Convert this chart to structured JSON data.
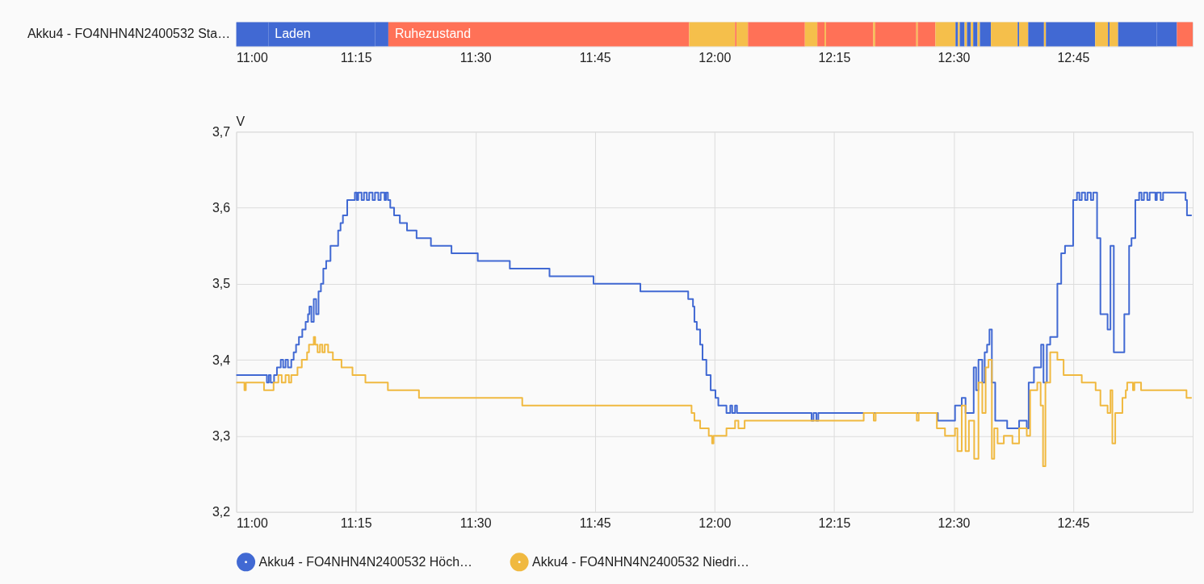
{
  "chart_data": [
    {
      "type": "bar",
      "orientation": "horizontal",
      "categories": [
        "Akku4 - FO4NHN4N2400532 Sta…"
      ],
      "xlim": [
        11,
        13
      ],
      "xticks": [
        {
          "value": 11,
          "label": "11:00"
        },
        {
          "value": 11.25,
          "label": "11:15"
        },
        {
          "value": 11.5,
          "label": "11:30"
        },
        {
          "value": 11.75,
          "label": "11:45"
        },
        {
          "value": 12,
          "label": "12:00"
        },
        {
          "value": 12.25,
          "label": "12:15"
        },
        {
          "value": 12.5,
          "label": "12:30"
        },
        {
          "value": 12.75,
          "label": "12:45"
        }
      ],
      "grid": false,
      "series": [
        {
          "color": "#4169d3",
          "values": [
            0.067
          ],
          "base": [
            11.0
          ]
        },
        {
          "color": "#4169d3",
          "values": [
            0.223
          ],
          "base": [
            11.067
          ],
          "value_labels": [
            "Laden"
          ]
        },
        {
          "color": "#4169d3",
          "values": [
            0.028
          ],
          "base": [
            11.29
          ]
        },
        {
          "color": "#ff7157",
          "values": [
            0.629
          ],
          "base": [
            11.318
          ],
          "value_labels": [
            "Ruhezustand"
          ]
        },
        {
          "color": "#f5bf4b",
          "values": [
            0.096
          ],
          "base": [
            11.947
          ]
        },
        {
          "color": "#ff7157",
          "values": [
            0.003
          ],
          "base": [
            12.043
          ]
        },
        {
          "color": "#f5bf4b",
          "values": [
            0.024
          ],
          "base": [
            12.046
          ]
        },
        {
          "color": "#ff7157",
          "values": [
            0.119
          ],
          "base": [
            12.07
          ]
        },
        {
          "color": "#f5bf4b",
          "values": [
            0.026
          ],
          "base": [
            12.189
          ]
        },
        {
          "color": "#ff7157",
          "values": [
            0.015
          ],
          "base": [
            12.215
          ]
        },
        {
          "color": "#f5bf4b",
          "values": [
            0.003
          ],
          "base": [
            12.23
          ]
        },
        {
          "color": "#ff7157",
          "values": [
            0.099
          ],
          "base": [
            12.233
          ]
        },
        {
          "color": "#f5bf4b",
          "values": [
            0.004
          ],
          "base": [
            12.332
          ]
        },
        {
          "color": "#ff7157",
          "values": [
            0.086
          ],
          "base": [
            12.336
          ]
        },
        {
          "color": "#f5bf4b",
          "values": [
            0.003
          ],
          "base": [
            12.422
          ]
        },
        {
          "color": "#ff7157",
          "values": [
            0.037
          ],
          "base": [
            12.425
          ]
        },
        {
          "color": "#f5bf4b",
          "values": [
            0.042
          ],
          "base": [
            12.462
          ]
        },
        {
          "color": "#4169d3",
          "values": [
            0.005
          ],
          "base": [
            12.504
          ]
        },
        {
          "color": "#f5bf4b",
          "values": [
            0.004
          ],
          "base": [
            12.509
          ]
        },
        {
          "color": "#4169d3",
          "values": [
            0.01
          ],
          "base": [
            12.513
          ]
        },
        {
          "color": "#f5bf4b",
          "values": [
            0.005
          ],
          "base": [
            12.523
          ]
        },
        {
          "color": "#4169d3",
          "values": [
            0.008
          ],
          "base": [
            12.528
          ]
        },
        {
          "color": "#f5bf4b",
          "values": [
            0.005
          ],
          "base": [
            12.536
          ]
        },
        {
          "color": "#4169d3",
          "values": [
            0.009
          ],
          "base": [
            12.541
          ]
        },
        {
          "color": "#f5bf4b",
          "values": [
            0.005
          ],
          "base": [
            12.55
          ]
        },
        {
          "color": "#4169d3",
          "values": [
            0.023
          ],
          "base": [
            12.555
          ]
        },
        {
          "color": "#f5bf4b",
          "values": [
            0.056
          ],
          "base": [
            12.578
          ]
        },
        {
          "color": "#4169d3",
          "values": [
            0.003
          ],
          "base": [
            12.634
          ]
        },
        {
          "color": "#f5bf4b",
          "values": [
            0.019
          ],
          "base": [
            12.637
          ]
        },
        {
          "color": "#4169d3",
          "values": [
            0.033
          ],
          "base": [
            12.656
          ]
        },
        {
          "color": "#f5bf4b",
          "values": [
            0.004
          ],
          "base": [
            12.689
          ]
        },
        {
          "color": "#4169d3",
          "values": [
            0.103
          ],
          "base": [
            12.693
          ]
        },
        {
          "color": "#f5bf4b",
          "values": [
            0.027
          ],
          "base": [
            12.796
          ]
        },
        {
          "color": "#4169d3",
          "values": [
            0.003
          ],
          "base": [
            12.823
          ]
        },
        {
          "color": "#f5bf4b",
          "values": [
            0.018
          ],
          "base": [
            12.826
          ]
        },
        {
          "color": "#4169d3",
          "values": [
            0.081
          ],
          "base": [
            12.844
          ]
        },
        {
          "color": "#4169d3",
          "values": [
            0.042
          ],
          "base": [
            12.925
          ]
        },
        {
          "color": "#ff7157",
          "values": [
            0.033
          ],
          "base": [
            12.967
          ]
        }
      ]
    },
    {
      "type": "step",
      "ylabel": "V",
      "xlim": [
        11,
        13
      ],
      "xticks": [
        {
          "value": 11,
          "label": "11:00"
        },
        {
          "value": 11.25,
          "label": "11:15"
        },
        {
          "value": 11.5,
          "label": "11:30"
        },
        {
          "value": 11.75,
          "label": "11:45"
        },
        {
          "value": 12,
          "label": "12:00"
        },
        {
          "value": 12.25,
          "label": "12:15"
        },
        {
          "value": 12.5,
          "label": "12:30"
        },
        {
          "value": 12.75,
          "label": "12:45"
        }
      ],
      "ylim": [
        3.2,
        3.7
      ],
      "yticks": [
        {
          "value": 3.2,
          "label": "3,2"
        },
        {
          "value": 3.3,
          "label": "3,3"
        },
        {
          "value": 3.4,
          "label": "3,4"
        },
        {
          "value": 3.5,
          "label": "3,5"
        },
        {
          "value": 3.6,
          "label": "3,6"
        },
        {
          "value": 3.7,
          "label": "3,7"
        }
      ],
      "grid": true,
      "legend": "bottom",
      "marker": "none",
      "series": [
        {
          "name": "Akku4 - FO4NHN4N2400532 Höch…",
          "color": "#4169d3",
          "x": [
            11.0,
            11.064,
            11.068,
            11.072,
            11.079,
            11.085,
            11.093,
            11.098,
            11.103,
            11.108,
            11.115,
            11.12,
            11.125,
            11.131,
            11.138,
            11.145,
            11.15,
            11.153,
            11.157,
            11.162,
            11.167,
            11.172,
            11.177,
            11.182,
            11.188,
            11.197,
            11.213,
            11.218,
            11.223,
            11.232,
            11.248,
            11.252,
            11.255,
            11.262,
            11.267,
            11.273,
            11.278,
            11.285,
            11.29,
            11.297,
            11.302,
            11.31,
            11.313,
            11.317,
            11.322,
            11.33,
            11.342,
            11.357,
            11.377,
            11.407,
            11.45,
            11.505,
            11.572,
            11.655,
            11.747,
            11.845,
            11.945,
            11.955,
            11.958,
            11.963,
            11.97,
            11.975,
            11.983,
            11.992,
            12.002,
            12.008,
            12.025,
            12.033,
            12.037,
            12.043,
            12.047,
            12.203,
            12.207,
            12.213,
            12.217,
            12.467,
            12.503,
            12.517,
            12.525,
            12.542,
            12.547,
            12.552,
            12.56,
            12.565,
            12.57,
            12.575,
            12.58,
            12.587,
            12.612,
            12.637,
            12.653,
            12.657,
            12.668,
            12.683,
            12.688,
            12.695,
            12.702,
            12.717,
            12.725,
            12.733,
            12.75,
            12.758,
            12.763,
            12.768,
            12.775,
            12.78,
            12.787,
            12.792,
            12.8,
            12.807,
            12.822,
            12.828,
            12.835,
            12.845,
            12.857,
            12.867,
            12.872,
            12.88,
            12.888,
            12.893,
            12.898,
            12.905,
            12.91,
            12.922,
            12.925,
            12.933,
            12.938,
            12.968,
            12.985,
            12.988,
            12.998
          ],
          "values": [
            3.38,
            3.37,
            3.38,
            3.37,
            3.38,
            3.39,
            3.4,
            3.39,
            3.4,
            3.39,
            3.4,
            3.41,
            3.42,
            3.43,
            3.44,
            3.45,
            3.46,
            3.47,
            3.45,
            3.48,
            3.46,
            3.49,
            3.5,
            3.52,
            3.53,
            3.55,
            3.57,
            3.58,
            3.59,
            3.61,
            3.62,
            3.61,
            3.62,
            3.61,
            3.62,
            3.61,
            3.62,
            3.61,
            3.62,
            3.61,
            3.62,
            3.61,
            3.62,
            3.61,
            3.6,
            3.59,
            3.58,
            3.57,
            3.56,
            3.55,
            3.54,
            3.53,
            3.52,
            3.51,
            3.5,
            3.49,
            3.48,
            3.47,
            3.45,
            3.44,
            3.42,
            3.4,
            3.38,
            3.36,
            3.35,
            3.34,
            3.33,
            3.34,
            3.33,
            3.34,
            3.33,
            3.32,
            3.33,
            3.32,
            3.33,
            3.32,
            3.34,
            3.35,
            3.33,
            3.39,
            3.36,
            3.4,
            3.37,
            3.41,
            3.42,
            3.44,
            3.37,
            3.32,
            3.31,
            3.32,
            3.31,
            3.37,
            3.39,
            3.42,
            3.37,
            3.42,
            3.43,
            3.5,
            3.54,
            3.55,
            3.61,
            3.62,
            3.61,
            3.62,
            3.61,
            3.62,
            3.61,
            3.62,
            3.56,
            3.46,
            3.44,
            3.55,
            3.41,
            3.41,
            3.46,
            3.55,
            3.56,
            3.61,
            3.62,
            3.61,
            3.62,
            3.61,
            3.62,
            3.61,
            3.62,
            3.61,
            3.62,
            3.62,
            3.61,
            3.59,
            3.59
          ]
        },
        {
          "name": "Akku4 - FO4NHN4N2400532 Niedri…",
          "color": "#f0b940",
          "x": [
            11.0,
            11.017,
            11.02,
            11.058,
            11.078,
            11.088,
            11.095,
            11.103,
            11.11,
            11.115,
            11.128,
            11.137,
            11.148,
            11.152,
            11.162,
            11.165,
            11.17,
            11.175,
            11.18,
            11.185,
            11.192,
            11.202,
            11.22,
            11.243,
            11.27,
            11.317,
            11.382,
            11.598,
            11.952,
            11.958,
            11.97,
            11.988,
            11.995,
            11.998,
            12.025,
            12.043,
            12.05,
            12.063,
            12.312,
            12.333,
            12.337,
            12.423,
            12.427,
            12.465,
            12.482,
            12.503,
            12.508,
            12.517,
            12.525,
            12.532,
            12.543,
            12.552,
            12.56,
            12.567,
            12.573,
            12.58,
            12.585,
            12.592,
            12.605,
            12.623,
            12.637,
            12.653,
            12.66,
            12.675,
            12.682,
            12.687,
            12.692,
            12.702,
            12.717,
            12.73,
            12.762,
            12.768,
            12.797,
            12.807,
            12.822,
            12.828,
            12.832,
            12.838,
            12.845,
            12.853,
            12.86,
            12.863,
            12.875,
            12.878,
            12.892,
            12.987,
            12.998
          ],
          "values": [
            3.37,
            3.36,
            3.37,
            3.36,
            3.37,
            3.38,
            3.37,
            3.38,
            3.37,
            3.38,
            3.39,
            3.4,
            3.41,
            3.42,
            3.43,
            3.42,
            3.41,
            3.42,
            3.41,
            3.42,
            3.41,
            3.4,
            3.39,
            3.38,
            3.37,
            3.36,
            3.35,
            3.34,
            3.33,
            3.32,
            3.31,
            3.3,
            3.29,
            3.3,
            3.31,
            3.32,
            3.31,
            3.32,
            3.33,
            3.32,
            3.33,
            3.32,
            3.33,
            3.31,
            3.3,
            3.31,
            3.28,
            3.34,
            3.28,
            3.32,
            3.27,
            3.37,
            3.33,
            3.39,
            3.4,
            3.27,
            3.31,
            3.29,
            3.3,
            3.29,
            3.31,
            3.3,
            3.36,
            3.37,
            3.34,
            3.26,
            3.37,
            3.41,
            3.4,
            3.38,
            3.38,
            3.37,
            3.36,
            3.34,
            3.33,
            3.36,
            3.29,
            3.33,
            3.33,
            3.35,
            3.36,
            3.37,
            3.36,
            3.37,
            3.36,
            3.35,
            3.35
          ]
        }
      ]
    }
  ]
}
